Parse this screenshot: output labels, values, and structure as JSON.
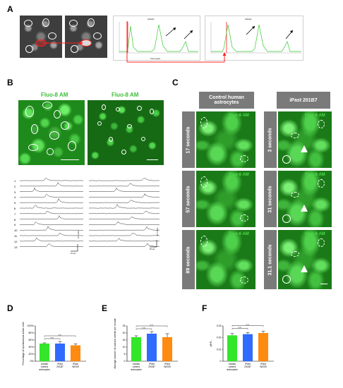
{
  "panels": {
    "A": "A",
    "B": "B",
    "C": "C",
    "D": "D",
    "E": "E",
    "F": "F"
  },
  "panel_a": {
    "chart1_title": "Activity",
    "chart2_title": "Activity",
    "xaxis": "Time (sec)"
  },
  "panel_b": {
    "left_title": "Fluo-8 AM",
    "right_title": "Fluo-8 AM",
    "trace_numbers": [
      "1",
      "2",
      "3",
      "4",
      "5",
      "6",
      "7",
      "8",
      "9",
      "10",
      "11",
      "12",
      "13"
    ],
    "left_scale_x": "10 sec",
    "left_scale_y": "10 % ΔF/F",
    "right_scale_x": "50 sec",
    "right_scale_y": "10 % ΔF/F"
  },
  "panel_c": {
    "col1_header": "Control human astrocytes",
    "col2_header": "iPast 201B7",
    "fluo_label": "Fluo-8 AM",
    "left_times": [
      "17 seconds",
      "57 seconds",
      "89 seconds"
    ],
    "right_times": [
      "3 seconds",
      "31 seconds",
      "31.1 seconds"
    ]
  },
  "chart_data": [
    {
      "type": "bar",
      "panel": "D",
      "categories": [
        "human control astrocytes",
        "iPast 201B7",
        "iPast WD39"
      ],
      "values": [
        50,
        50,
        45
      ],
      "errors": [
        2,
        6,
        4
      ],
      "ylabel": "Percentage of spontaneous active cells",
      "ylim": [
        0,
        100
      ],
      "yticks": [
        "0%",
        "20%",
        "40%",
        "60%",
        "80%",
        "100%"
      ],
      "colors": [
        "#33e62a",
        "#2f6bff",
        "#ff8a10"
      ],
      "significance": [
        "n.s.",
        "n.s."
      ]
    },
    {
      "type": "bar",
      "panel": "E",
      "categories": [
        "human control astrocytes",
        "iPast 201B7",
        "iPast WD39"
      ],
      "values": [
        17,
        19.5,
        17
      ],
      "errors": [
        1,
        1.5,
        2.5
      ],
      "ylabel": "Average number of calcium events per minute",
      "ylim": [
        0,
        25
      ],
      "yticks": [
        "0",
        "5",
        "10",
        "15",
        "20",
        "25"
      ],
      "colors": [
        "#33e62a",
        "#2f6bff",
        "#ff8a10"
      ],
      "significance": [
        "n.s.",
        "n.s."
      ]
    },
    {
      "type": "bar",
      "panel": "F",
      "categories": [
        "human control astrocytes",
        "iPast 201B7",
        "iPast WD39"
      ],
      "values": [
        0.022,
        0.023,
        0.024
      ],
      "errors": [
        0.0015,
        0.0015,
        0.0015
      ],
      "ylabel": "ΔF/F₀",
      "ylim": [
        0,
        0.03
      ],
      "yticks": [
        "0",
        "0.01",
        "0.02",
        "0.03"
      ],
      "colors": [
        "#33e62a",
        "#2f6bff",
        "#ff8a10"
      ],
      "significance": [
        "n.s.",
        "n.s."
      ]
    }
  ]
}
